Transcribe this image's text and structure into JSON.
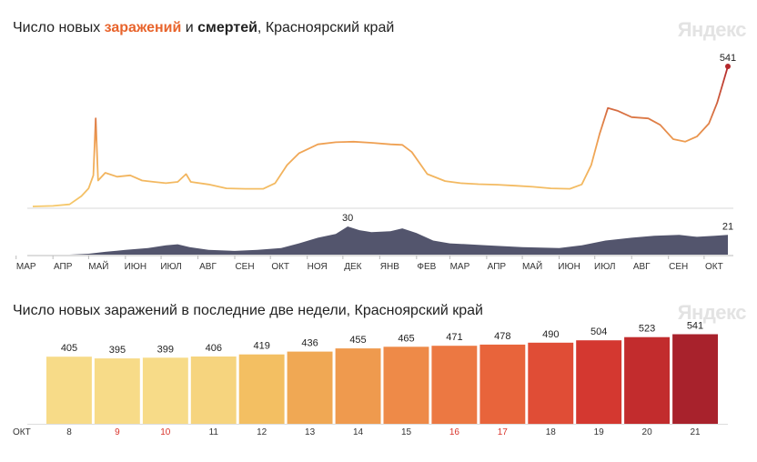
{
  "brand": "Яндекс",
  "top": {
    "title_parts": [
      "Число новых ",
      "заражений",
      " и ",
      "смертей",
      ", Красноярский край"
    ],
    "months": [
      "МАР",
      "АПР",
      "МАЙ",
      "ИЮН",
      "ИЮЛ",
      "АВГ",
      "СЕН",
      "ОКТ",
      "НОЯ",
      "ДЕК",
      "ЯНВ",
      "ФЕВ",
      "МАР",
      "АПР",
      "МАЙ",
      "ИЮН",
      "ИЮЛ",
      "АВГ",
      "СЕН",
      "ОКТ"
    ]
  },
  "bottom": {
    "title": "Число новых заражений в последние две недели, Красноярский край",
    "month_label": "ОКТ"
  },
  "chart_data": [
    {
      "type": "line",
      "title": "Число новых заражений и смертей, Красноярский край",
      "series": [
        {
          "name": "заражений",
          "color_low": "#f5c86a",
          "color_high": "#b4282c",
          "points": [
            [
              "2020-03-15",
              0
            ],
            [
              "2020-04-01",
              2
            ],
            [
              "2020-04-15",
              8
            ],
            [
              "2020-04-25",
              40
            ],
            [
              "2020-05-01",
              70
            ],
            [
              "2020-05-05",
              120
            ],
            [
              "2020-05-07",
              340
            ],
            [
              "2020-05-09",
              100
            ],
            [
              "2020-05-15",
              130
            ],
            [
              "2020-05-25",
              115
            ],
            [
              "2020-06-05",
              120
            ],
            [
              "2020-06-15",
              100
            ],
            [
              "2020-06-25",
              95
            ],
            [
              "2020-07-05",
              90
            ],
            [
              "2020-07-15",
              95
            ],
            [
              "2020-07-22",
              125
            ],
            [
              "2020-07-26",
              95
            ],
            [
              "2020-08-10",
              85
            ],
            [
              "2020-08-25",
              70
            ],
            [
              "2020-09-10",
              68
            ],
            [
              "2020-09-25",
              68
            ],
            [
              "2020-10-05",
              90
            ],
            [
              "2020-10-15",
              160
            ],
            [
              "2020-10-25",
              205
            ],
            [
              "2020-11-10",
              240
            ],
            [
              "2020-11-25",
              248
            ],
            [
              "2020-12-10",
              250
            ],
            [
              "2020-12-25",
              246
            ],
            [
              "2021-01-10",
              240
            ],
            [
              "2021-01-20",
              238
            ],
            [
              "2021-01-28",
              210
            ],
            [
              "2021-02-10",
              125
            ],
            [
              "2021-02-25",
              98
            ],
            [
              "2021-03-10",
              90
            ],
            [
              "2021-03-25",
              86
            ],
            [
              "2021-04-10",
              84
            ],
            [
              "2021-04-25",
              80
            ],
            [
              "2021-05-10",
              76
            ],
            [
              "2021-05-25",
              70
            ],
            [
              "2021-06-10",
              68
            ],
            [
              "2021-06-20",
              85
            ],
            [
              "2021-06-28",
              160
            ],
            [
              "2021-07-05",
              280
            ],
            [
              "2021-07-12",
              380
            ],
            [
              "2021-07-20",
              370
            ],
            [
              "2021-08-01",
              345
            ],
            [
              "2021-08-15",
              340
            ],
            [
              "2021-08-25",
              315
            ],
            [
              "2021-09-05",
              260
            ],
            [
              "2021-09-15",
              250
            ],
            [
              "2021-09-25",
              270
            ],
            [
              "2021-10-05",
              320
            ],
            [
              "2021-10-12",
              400
            ],
            [
              "2021-10-21",
              541
            ]
          ]
        },
        {
          "name": "смертей",
          "color": "#3b3d59",
          "points": [
            [
              "2020-03-15",
              0
            ],
            [
              "2020-04-15",
              0
            ],
            [
              "2020-05-01",
              1
            ],
            [
              "2020-05-15",
              3
            ],
            [
              "2020-06-01",
              5
            ],
            [
              "2020-06-20",
              7
            ],
            [
              "2020-07-05",
              10
            ],
            [
              "2020-07-15",
              11
            ],
            [
              "2020-07-25",
              8
            ],
            [
              "2020-08-10",
              5
            ],
            [
              "2020-09-01",
              4
            ],
            [
              "2020-09-20",
              5
            ],
            [
              "2020-10-10",
              7
            ],
            [
              "2020-10-25",
              12
            ],
            [
              "2020-11-10",
              18
            ],
            [
              "2020-11-25",
              22
            ],
            [
              "2020-12-05",
              30
            ],
            [
              "2020-12-15",
              26
            ],
            [
              "2020-12-25",
              24
            ],
            [
              "2021-01-10",
              25
            ],
            [
              "2021-01-20",
              28
            ],
            [
              "2021-02-01",
              23
            ],
            [
              "2021-02-15",
              15
            ],
            [
              "2021-03-01",
              12
            ],
            [
              "2021-04-01",
              10
            ],
            [
              "2021-05-01",
              8
            ],
            [
              "2021-06-01",
              7
            ],
            [
              "2021-06-20",
              10
            ],
            [
              "2021-07-10",
              15
            ],
            [
              "2021-08-01",
              18
            ],
            [
              "2021-08-20",
              20
            ],
            [
              "2021-09-10",
              21
            ],
            [
              "2021-09-25",
              19
            ],
            [
              "2021-10-10",
              20
            ],
            [
              "2021-10-21",
              21
            ]
          ]
        }
      ],
      "annotations": [
        {
          "series": "заражений",
          "date": "2021-10-21",
          "value": 541,
          "label": "541"
        },
        {
          "series": "смертей",
          "date": "2020-12-05",
          "value": 30,
          "label": "30"
        },
        {
          "series": "смертей",
          "date": "2021-10-21",
          "value": 21,
          "label": "21"
        }
      ],
      "x_ticks": [
        "МАР",
        "АПР",
        "МАЙ",
        "ИЮН",
        "ИЮЛ",
        "АВГ",
        "СЕН",
        "ОКТ",
        "НОЯ",
        "ДЕК",
        "ЯНВ",
        "ФЕВ",
        "МАР",
        "АПР",
        "МАЙ",
        "ИЮН",
        "ИЮЛ",
        "АВГ",
        "СЕН",
        "ОКТ"
      ],
      "xlim": [
        "2020-03-15",
        "2021-10-21"
      ],
      "ylim_infections": [
        0,
        541
      ],
      "ylim_deaths": [
        0,
        30
      ],
      "grid": false
    },
    {
      "type": "bar",
      "title": "Число новых заражений в последние две недели, Красноярский край",
      "categories": [
        "8",
        "9",
        "10",
        "11",
        "12",
        "13",
        "14",
        "15",
        "16",
        "17",
        "18",
        "19",
        "20",
        "21"
      ],
      "category_group": "ОКТ",
      "weekend_days": [
        "9",
        "10",
        "16",
        "17"
      ],
      "values": [
        405,
        395,
        399,
        406,
        419,
        436,
        455,
        465,
        471,
        478,
        490,
        504,
        523,
        541
      ],
      "colors": [
        "#f7db88",
        "#f7db88",
        "#f7db88",
        "#f6d47e",
        "#f3bf62",
        "#f0a854",
        "#ef9a4e",
        "#ee8a48",
        "#ec7842",
        "#e8643b",
        "#e04d36",
        "#d43830",
        "#c22c2d",
        "#a8222c"
      ],
      "ylim": [
        0,
        560
      ],
      "grid": false
    }
  ]
}
